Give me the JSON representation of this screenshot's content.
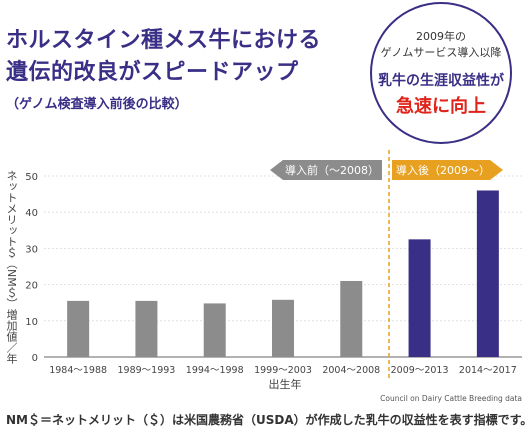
{
  "header": {
    "title_line1": "ホルスタイン種メス牛における",
    "title_line2": "遺伝的改良がスピードアップ",
    "subtitle": "（ゲノム検査導入前後の比較）"
  },
  "badge": {
    "line1": "2009年の",
    "line2": "ゲノムサービス導入以降",
    "line3": "乳牛の生涯収益性が",
    "line4": "急速に向上"
  },
  "footnote": "NM＄＝ネットメリット（＄）は米国農務省（USDA）が作成した乳牛の収益性を表す指標です。",
  "colors": {
    "before": "#8c8c8c",
    "after": "#3a2f86",
    "divider": "#e8a020",
    "title": "#3a2f86",
    "accent": "#e0231a"
  },
  "chart_data": {
    "type": "bar",
    "ylabel": "ネットメリット＄（NM＄）増加値／年",
    "xlabel": "出生年",
    "ylim": [
      0,
      50
    ],
    "yticks": [
      0,
      10,
      20,
      30,
      40,
      50
    ],
    "grid": true,
    "categories": [
      "1984～1988",
      "1989～1993",
      "1994～1998",
      "1999～2003",
      "2004～2008",
      "2009～2013",
      "2014～2017"
    ],
    "values": [
      15.5,
      15.5,
      14.8,
      15.8,
      21,
      32.5,
      46
    ],
    "groups": [
      "before",
      "before",
      "before",
      "before",
      "before",
      "after",
      "after"
    ],
    "period_before_label": "導入前（～2008）",
    "period_after_label": "導入後（2009～）",
    "source": "Council on Dairy Cattle Breeding data"
  }
}
